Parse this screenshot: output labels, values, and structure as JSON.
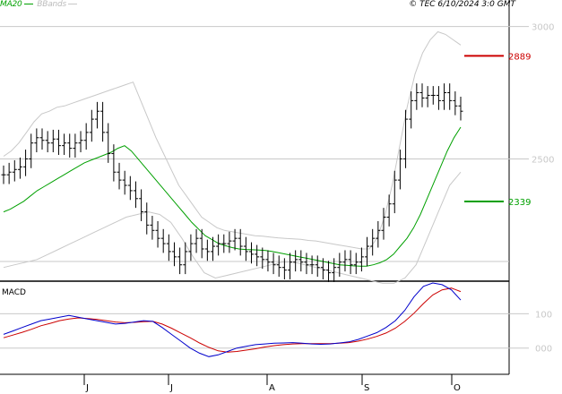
{
  "header": {
    "legend_ma": "MA20",
    "legend_bbands": "BBands",
    "copyright": "© TEC 6/10/2024 3:0 GMT"
  },
  "colors": {
    "price_bars": "#000000",
    "ma20": "#00a000",
    "bbands": "#c8c8c8",
    "resistance": "#cc0000",
    "support": "#00a000",
    "macd_line": "#0000cc",
    "signal_line": "#cc0000",
    "gridline": "#c8c8c8"
  },
  "chart_data": [
    {
      "type": "line",
      "subtype": "ohlc",
      "x_months": [
        "J",
        "J",
        "A",
        "S",
        "O"
      ],
      "ylim": [
        2045,
        3100
      ],
      "yticks": [
        3000,
        2500
      ],
      "ytick_labels": [
        "3000",
        "2500"
      ],
      "price_close": [
        2440,
        2450,
        2460,
        2470,
        2500,
        2560,
        2580,
        2570,
        2560,
        2575,
        2550,
        2560,
        2540,
        2560,
        2570,
        2600,
        2650,
        2680,
        2600,
        2520,
        2450,
        2420,
        2400,
        2380,
        2350,
        2300,
        2250,
        2230,
        2200,
        2180,
        2150,
        2130,
        2100,
        2150,
        2180,
        2200,
        2160,
        2150,
        2170,
        2180,
        2180,
        2190,
        2200,
        2170,
        2150,
        2140,
        2130,
        2120,
        2110,
        2100,
        2090,
        2080,
        2110,
        2120,
        2110,
        2100,
        2100,
        2090,
        2080,
        2070,
        2090,
        2110,
        2120,
        2100,
        2110,
        2130,
        2170,
        2200,
        2230,
        2280,
        2330,
        2420,
        2500,
        2650,
        2720,
        2750,
        2730,
        2740,
        2740,
        2720,
        2750,
        2720,
        2700,
        2680
      ],
      "ma20": [
        2300,
        2310,
        2325,
        2340,
        2360,
        2380,
        2395,
        2410,
        2425,
        2440,
        2455,
        2470,
        2485,
        2495,
        2505,
        2515,
        2525,
        2540,
        2550,
        2530,
        2500,
        2470,
        2440,
        2410,
        2380,
        2350,
        2320,
        2290,
        2260,
        2235,
        2210,
        2195,
        2180,
        2172,
        2165,
        2160,
        2158,
        2157,
        2156,
        2154,
        2150,
        2145,
        2140,
        2135,
        2130,
        2125,
        2120,
        2115,
        2110,
        2105,
        2100,
        2098,
        2096,
        2095,
        2095,
        2100,
        2108,
        2120,
        2140,
        2170,
        2200,
        2240,
        2290,
        2350,
        2410,
        2470,
        2530,
        2580,
        2620
      ],
      "bband_upper": [
        2510,
        2530,
        2560,
        2600,
        2640,
        2670,
        2680,
        2695,
        2700,
        2710,
        2720,
        2730,
        2740,
        2750,
        2760,
        2770,
        2780,
        2790,
        2720,
        2650,
        2580,
        2520,
        2460,
        2400,
        2360,
        2320,
        2280,
        2260,
        2240,
        2230,
        2225,
        2220,
        2215,
        2210,
        2208,
        2205,
        2202,
        2200,
        2198,
        2196,
        2192,
        2190,
        2185,
        2180,
        2175,
        2170,
        2165,
        2160,
        2160,
        2200,
        2280,
        2400,
        2550,
        2700,
        2820,
        2900,
        2950,
        2980,
        2970,
        2950,
        2930
      ],
      "bband_lower": [
        2090,
        2100,
        2110,
        2120,
        2140,
        2160,
        2180,
        2200,
        2220,
        2240,
        2260,
        2280,
        2290,
        2300,
        2290,
        2260,
        2200,
        2130,
        2070,
        2050,
        2060,
        2070,
        2080,
        2090,
        2100,
        2110,
        2110,
        2100,
        2090,
        2080,
        2070,
        2060,
        2050,
        2040,
        2030,
        2030,
        2050,
        2100,
        2200,
        2300,
        2400,
        2450
      ],
      "levels": [
        {
          "value": 2889,
          "label": "2889",
          "kind": "resistance"
        },
        {
          "value": 2339,
          "label": "2339",
          "kind": "support"
        }
      ]
    },
    {
      "type": "line",
      "title": "MACD",
      "ylim": [
        -40,
        190
      ],
      "yticks": [
        100,
        0
      ],
      "ytick_labels": [
        "100",
        "000"
      ],
      "series": [
        {
          "name": "",
          "values": [
            40,
            50,
            60,
            70,
            80,
            85,
            90,
            95,
            90,
            85,
            80,
            75,
            70,
            72,
            76,
            80,
            78,
            60,
            40,
            20,
            0,
            -15,
            -25,
            -20,
            -10,
            0,
            5,
            10,
            12,
            14,
            15,
            16,
            14,
            12,
            11,
            12,
            15,
            18,
            25,
            35,
            45,
            60,
            80,
            110,
            150,
            180,
            190,
            185,
            170,
            140
          ]
        },
        {
          "name": "",
          "values": [
            30,
            38,
            46,
            55,
            65,
            72,
            80,
            85,
            88,
            86,
            84,
            80,
            76,
            74,
            75,
            77,
            78,
            70,
            58,
            44,
            30,
            15,
            2,
            -8,
            -12,
            -10,
            -6,
            -2,
            3,
            7,
            10,
            12,
            13,
            13,
            13,
            13,
            14,
            16,
            20,
            26,
            34,
            44,
            58,
            78,
            102,
            130,
            155,
            170,
            175,
            165
          ]
        }
      ]
    }
  ]
}
